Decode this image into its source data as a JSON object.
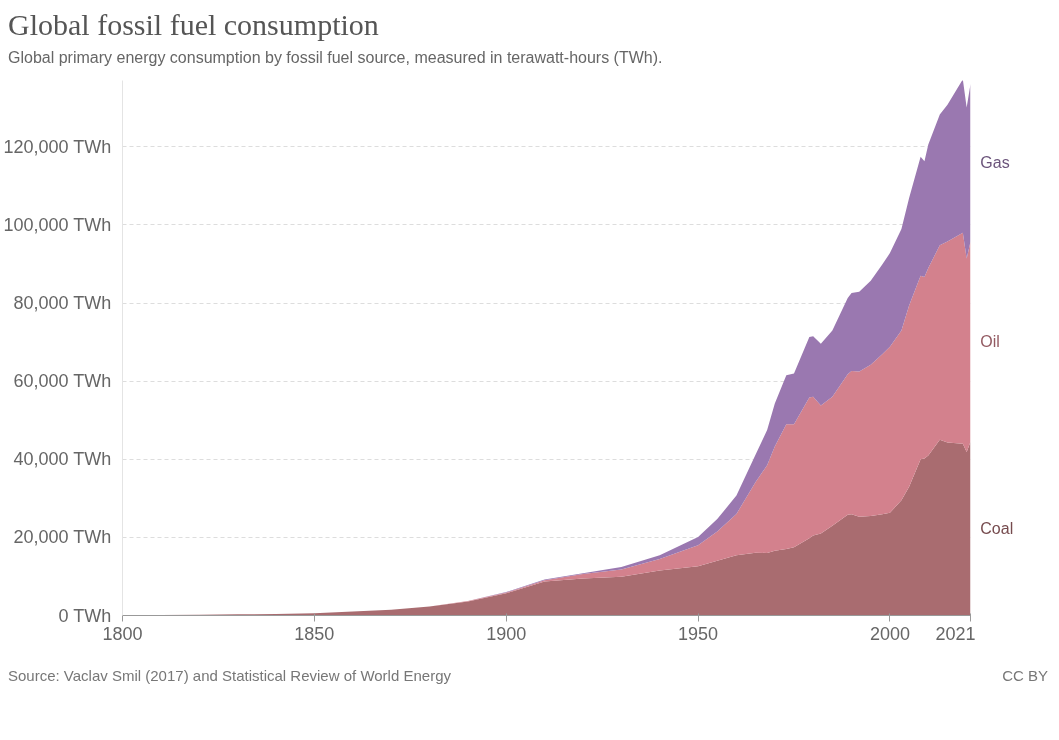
{
  "chart_data": {
    "type": "area",
    "stacked": true,
    "title": "Global fossil fuel consumption",
    "subtitle": "Global primary energy consumption by fossil fuel source, measured in terawatt-hours (TWh).",
    "x": [
      1800,
      1810,
      1820,
      1830,
      1840,
      1850,
      1860,
      1870,
      1880,
      1890,
      1900,
      1910,
      1920,
      1930,
      1940,
      1950,
      1955,
      1960,
      1965,
      1968,
      1970,
      1973,
      1975,
      1979,
      1980,
      1982,
      1985,
      1989,
      1990,
      1992,
      1995,
      1998,
      2000,
      2003,
      2005,
      2008,
      2009,
      2010,
      2013,
      2015,
      2019,
      2020,
      2021
    ],
    "series": [
      {
        "name": "Coal",
        "color": "#a96c70",
        "values": [
          100,
          100,
          200,
          300,
          400,
          600,
          1000,
          1500,
          2300,
          3600,
          5700,
          8700,
          9500,
          9900,
          11500,
          12600,
          14000,
          15400,
          16100,
          16000,
          16600,
          17000,
          17500,
          19800,
          20500,
          21000,
          23000,
          25800,
          25900,
          25300,
          25500,
          25900,
          26300,
          29500,
          33000,
          40000,
          40200,
          41000,
          45000,
          44300,
          44000,
          41900,
          44500
        ]
      },
      {
        "name": "Oil",
        "color": "#d3818d",
        "values": [
          0,
          0,
          0,
          0,
          0,
          0,
          0,
          0,
          0,
          100,
          200,
          300,
          1100,
          1900,
          3000,
          5400,
          7500,
          10600,
          18100,
          22500,
          26700,
          32000,
          31500,
          36000,
          35500,
          32800,
          33000,
          36000,
          36700,
          37200,
          38700,
          41000,
          42500,
          43500,
          46400,
          47000,
          46500,
          48000,
          49800,
          51500,
          54000,
          49500,
          51200
        ]
      },
      {
        "name": "Gas",
        "color": "#9a78b0",
        "values": [
          0,
          0,
          0,
          0,
          0,
          0,
          0,
          0,
          0,
          0,
          100,
          200,
          200,
          600,
          900,
          2100,
          3200,
          4700,
          7000,
          9000,
          11000,
          12500,
          13000,
          15500,
          15500,
          15800,
          17000,
          19500,
          20000,
          20400,
          21500,
          23000,
          24000,
          26000,
          27500,
          30500,
          29600,
          31600,
          33500,
          35000,
          39300,
          38700,
          40400
        ]
      }
    ],
    "xlim": [
      1800,
      2021
    ],
    "xticks": [
      1800,
      1850,
      1900,
      1950,
      2000,
      2021
    ],
    "ylim": [
      0,
      137000
    ],
    "yticks": [
      {
        "value": 0,
        "label": "0 TWh"
      },
      {
        "value": 20000,
        "label": "20,000 TWh"
      },
      {
        "value": 40000,
        "label": "40,000 TWh"
      },
      {
        "value": 60000,
        "label": "60,000 TWh"
      },
      {
        "value": 80000,
        "label": "80,000 TWh"
      },
      {
        "value": 100000,
        "label": "100,000 TWh"
      },
      {
        "value": 120000,
        "label": "120,000 TWh"
      }
    ],
    "grid": "y",
    "annotations": [
      "Source: Vaclav Smil (2017) and Statistical Review of World Energy",
      "CC BY"
    ]
  }
}
